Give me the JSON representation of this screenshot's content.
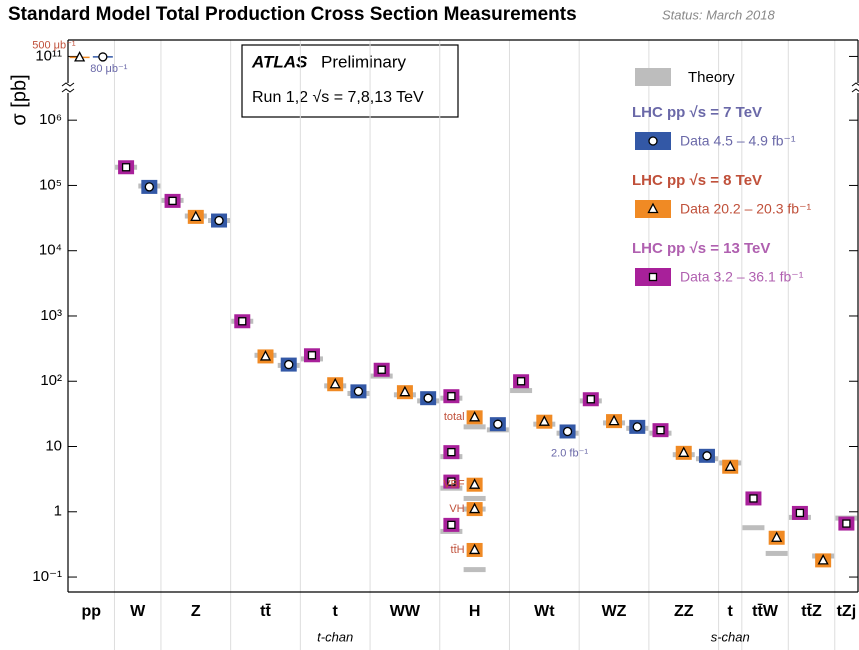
{
  "chart_data": {
    "type": "scatter",
    "title": "Standard Model Total Production Cross Section Measurements",
    "status": "Status: March 2018",
    "atlas": "ATLAS",
    "atlas_status": "Preliminary",
    "run_label": "Run 1,2  √s = 7,8,13 TeV",
    "ylabel": "σ [pb]",
    "log_y": true,
    "ylim": [
      0.059,
      2900000
    ],
    "ylim_upper": [
      30000000000,
      200000000000
    ],
    "yticks": [
      {
        "value": 100000000000,
        "label": "10¹¹"
      },
      {
        "value": 1000000,
        "label": "10⁶"
      },
      {
        "value": 100000,
        "label": "10⁵"
      },
      {
        "value": 10000,
        "label": "10⁴"
      },
      {
        "value": 1000,
        "label": "10³"
      },
      {
        "value": 100,
        "label": "10²"
      },
      10,
      1,
      {
        "value": 0.1,
        "label": "10⁻¹"
      }
    ],
    "theory_label": "Theory",
    "theory_color": "#bdbdbd",
    "categories": [
      "pp",
      "W",
      "Z",
      "tt̄",
      "t",
      "WW",
      "H",
      "Wt",
      "WZ",
      "ZZ",
      "t",
      "tt̄W",
      "tt̄Z",
      "tZj"
    ],
    "category_notes": [
      {
        "category": 4,
        "text": "t-chan"
      },
      {
        "category": 10,
        "text": "s-chan"
      }
    ],
    "series": [
      {
        "name": "LHC pp  √s = 7 TeV",
        "data_label": "Data  4.5 – 4.9 fb⁻¹",
        "color": "#3358a6",
        "text_color": "#6a68a8",
        "marker": "circle"
      },
      {
        "name": "LHC pp  √s = 8 TeV",
        "data_label": "Data  20.2 – 20.3 fb⁻¹",
        "color": "#f08a24",
        "text_color": "#c0503a",
        "marker": "triangle"
      },
      {
        "name": "LHC pp  √s = 13 TeV",
        "data_label": "Data  3.2 – 36.1 fb⁻¹",
        "color": "#a8209a",
        "text_color": "#b060b0",
        "marker": "square"
      }
    ],
    "measurements": [
      {
        "category": 0,
        "series": 1,
        "value": 96000000000,
        "label": "500 μb⁻¹"
      },
      {
        "category": 0,
        "series": 0,
        "value": 98000000000,
        "label": "80 μb⁻¹"
      },
      {
        "category": 1,
        "series": 2,
        "value": 190000,
        "theory": 190000
      },
      {
        "category": 1,
        "series": 0,
        "value": 95000,
        "theory": 98000
      },
      {
        "category": 2,
        "series": 2,
        "value": 58000,
        "theory": 59000
      },
      {
        "category": 2,
        "series": 1,
        "value": 33000,
        "theory": 34000
      },
      {
        "category": 2,
        "series": 0,
        "value": 29000,
        "theory": 29000
      },
      {
        "category": 3,
        "series": 2,
        "value": 830,
        "theory": 830
      },
      {
        "category": 3,
        "series": 1,
        "value": 240,
        "theory": 250
      },
      {
        "category": 3,
        "series": 0,
        "value": 180,
        "theory": 175
      },
      {
        "category": 4,
        "series": 2,
        "value": 250,
        "theory": 220
      },
      {
        "category": 4,
        "series": 1,
        "value": 90,
        "theory": 85
      },
      {
        "category": 4,
        "series": 0,
        "value": 70,
        "theory": 65
      },
      {
        "category": 5,
        "series": 2,
        "value": 150,
        "theory": 120
      },
      {
        "category": 5,
        "series": 1,
        "value": 68,
        "theory": 62
      },
      {
        "category": 5,
        "series": 0,
        "value": 55,
        "theory": 50
      },
      {
        "category": 6,
        "series": 2,
        "value": 59,
        "theory": 55
      },
      {
        "category": 6,
        "series": 1,
        "value": 28,
        "theory": 20,
        "label": "total"
      },
      {
        "category": 6,
        "series": 0,
        "value": 22,
        "theory": 18
      },
      {
        "category": 6,
        "series": 2,
        "value": 8.2,
        "theory": 7
      },
      {
        "category": 6,
        "series": 2,
        "value": 2.9,
        "theory": 2.3
      },
      {
        "category": 6,
        "series": 2,
        "value": 0.63,
        "theory": 0.5
      },
      {
        "category": 6,
        "series": 1,
        "value": 2.6,
        "theory": 1.6,
        "label": "VBF"
      },
      {
        "category": 6,
        "series": 1,
        "value": 1.1,
        "theory": 1.1,
        "label": "VH"
      },
      {
        "category": 6,
        "series": 1,
        "value": 0.26,
        "theory": 0.13,
        "label": "tt̄H"
      },
      {
        "category": 7,
        "series": 2,
        "value": 100,
        "theory": 72
      },
      {
        "category": 7,
        "series": 1,
        "value": 24,
        "theory": 22
      },
      {
        "category": 7,
        "series": 0,
        "value": 17,
        "theory": 16,
        "label": "2.0 fb⁻¹"
      },
      {
        "category": 8,
        "series": 2,
        "value": 53,
        "theory": 50
      },
      {
        "category": 8,
        "series": 1,
        "value": 24.5,
        "theory": 23
      },
      {
        "category": 8,
        "series": 0,
        "value": 20,
        "theory": 19
      },
      {
        "category": 9,
        "series": 2,
        "value": 17.8,
        "theory": 16
      },
      {
        "category": 9,
        "series": 1,
        "value": 8,
        "theory": 7.5
      },
      {
        "category": 9,
        "series": 0,
        "value": 7.2,
        "theory": 6.5
      },
      {
        "category": 10,
        "series": 1,
        "value": 4.9,
        "theory": 5.6
      },
      {
        "category": 11,
        "series": 2,
        "value": 1.6,
        "theory": 0.57
      },
      {
        "category": 11,
        "series": 1,
        "value": 0.4,
        "theory": 0.23
      },
      {
        "category": 12,
        "series": 2,
        "value": 0.96,
        "theory": 0.82
      },
      {
        "category": 12,
        "series": 1,
        "value": 0.18,
        "theory": 0.21
      },
      {
        "category": 13,
        "series": 2,
        "value": 0.66,
        "theory": 0.8
      }
    ]
  }
}
